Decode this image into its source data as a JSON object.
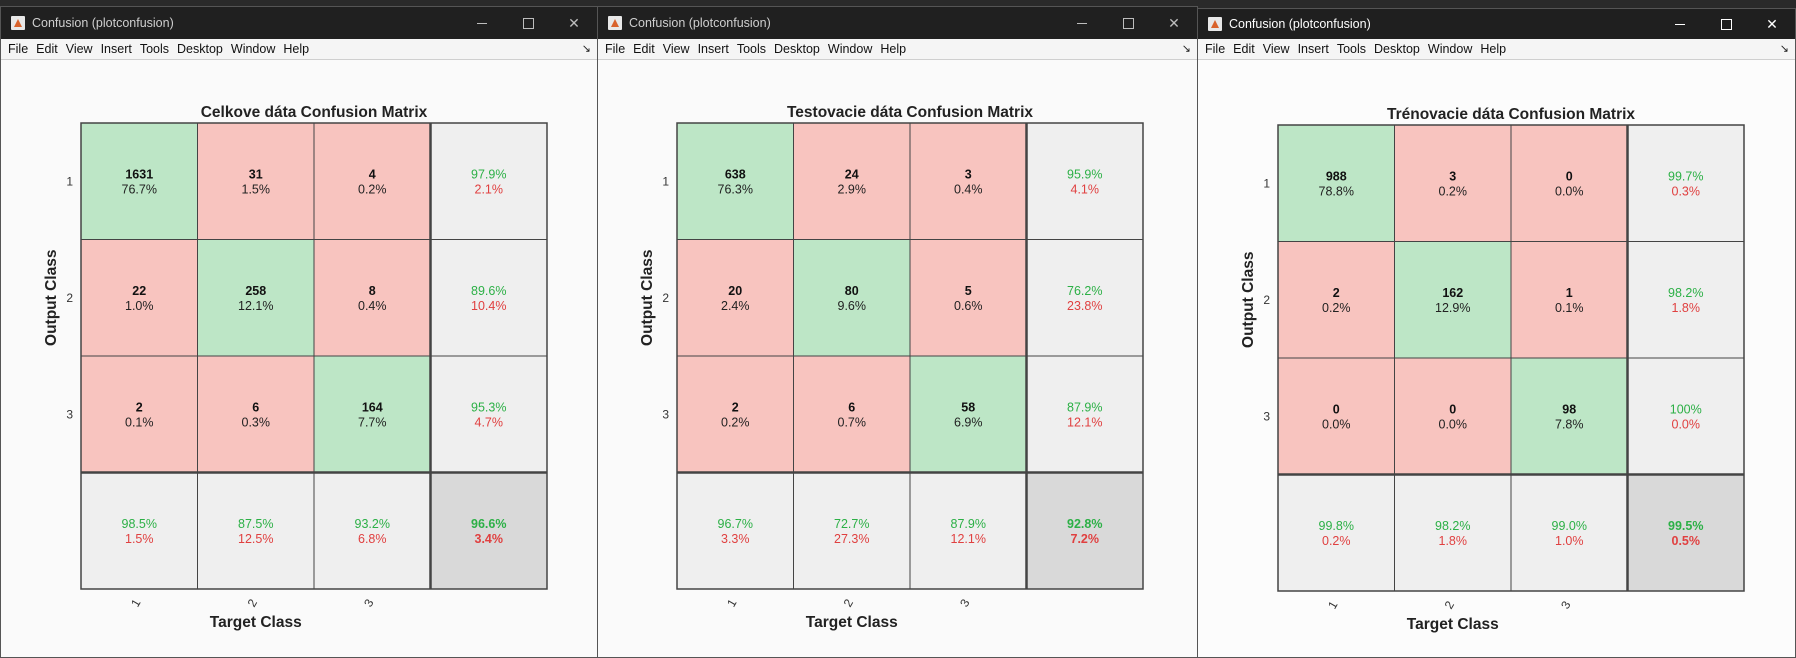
{
  "colors": {
    "correct_cell": "#bde6c6",
    "wrong_cell": "#f8c4bf",
    "summary_cell": "#efefef",
    "overall_cell": "#d9d9d9",
    "green_text": "#2cb046",
    "red_text": "#e04040"
  },
  "menu": [
    "File",
    "Edit",
    "View",
    "Insert",
    "Tools",
    "Desktop",
    "Window",
    "Help"
  ],
  "windows": [
    {
      "title": "Confusion (plotconfusion)",
      "matrix_title": "Celkove dáta Confusion Matrix",
      "xlabel": "Target Class",
      "ylabel": "Output Class",
      "classes": [
        "1",
        "2",
        "3"
      ],
      "counts": [
        [
          "1631",
          "31",
          "4"
        ],
        [
          "22",
          "258",
          "8"
        ],
        [
          "2",
          "6",
          "164"
        ]
      ],
      "percents": [
        [
          "76.7%",
          "1.5%",
          "0.2%"
        ],
        [
          "1.0%",
          "12.1%",
          "0.4%"
        ],
        [
          "0.1%",
          "0.3%",
          "7.7%"
        ]
      ],
      "row_summary": [
        [
          "97.9%",
          "2.1%"
        ],
        [
          "89.6%",
          "10.4%"
        ],
        [
          "95.3%",
          "4.7%"
        ]
      ],
      "col_summary": [
        [
          "98.5%",
          "1.5%"
        ],
        [
          "87.5%",
          "12.5%"
        ],
        [
          "93.2%",
          "6.8%"
        ]
      ],
      "overall": [
        "96.6%",
        "3.4%"
      ]
    },
    {
      "title": "Confusion (plotconfusion)",
      "matrix_title": "Testovacie dáta Confusion Matrix",
      "xlabel": "Target Class",
      "ylabel": "Output Class",
      "classes": [
        "1",
        "2",
        "3"
      ],
      "counts": [
        [
          "638",
          "24",
          "3"
        ],
        [
          "20",
          "80",
          "5"
        ],
        [
          "2",
          "6",
          "58"
        ]
      ],
      "percents": [
        [
          "76.3%",
          "2.9%",
          "0.4%"
        ],
        [
          "2.4%",
          "9.6%",
          "0.6%"
        ],
        [
          "0.2%",
          "0.7%",
          "6.9%"
        ]
      ],
      "row_summary": [
        [
          "95.9%",
          "4.1%"
        ],
        [
          "76.2%",
          "23.8%"
        ],
        [
          "87.9%",
          "12.1%"
        ]
      ],
      "col_summary": [
        [
          "96.7%",
          "3.3%"
        ],
        [
          "72.7%",
          "27.3%"
        ],
        [
          "87.9%",
          "12.1%"
        ]
      ],
      "overall": [
        "92.8%",
        "7.2%"
      ]
    },
    {
      "title": "Confusion (plotconfusion)",
      "matrix_title": "Trénovacie dáta Confusion Matrix",
      "xlabel": "Target Class",
      "ylabel": "Output Class",
      "classes": [
        "1",
        "2",
        "3"
      ],
      "counts": [
        [
          "988",
          "3",
          "0"
        ],
        [
          "2",
          "162",
          "1"
        ],
        [
          "0",
          "0",
          "98"
        ]
      ],
      "percents": [
        [
          "78.8%",
          "0.2%",
          "0.0%"
        ],
        [
          "0.2%",
          "12.9%",
          "0.1%"
        ],
        [
          "0.0%",
          "0.0%",
          "7.8%"
        ]
      ],
      "row_summary": [
        [
          "99.7%",
          "0.3%"
        ],
        [
          "98.2%",
          "1.8%"
        ],
        [
          "100%",
          "0.0%"
        ]
      ],
      "col_summary": [
        [
          "99.8%",
          "0.2%"
        ],
        [
          "98.2%",
          "1.8%"
        ],
        [
          "99.0%",
          "1.0%"
        ]
      ],
      "overall": [
        "99.5%",
        "0.5%"
      ]
    }
  ]
}
